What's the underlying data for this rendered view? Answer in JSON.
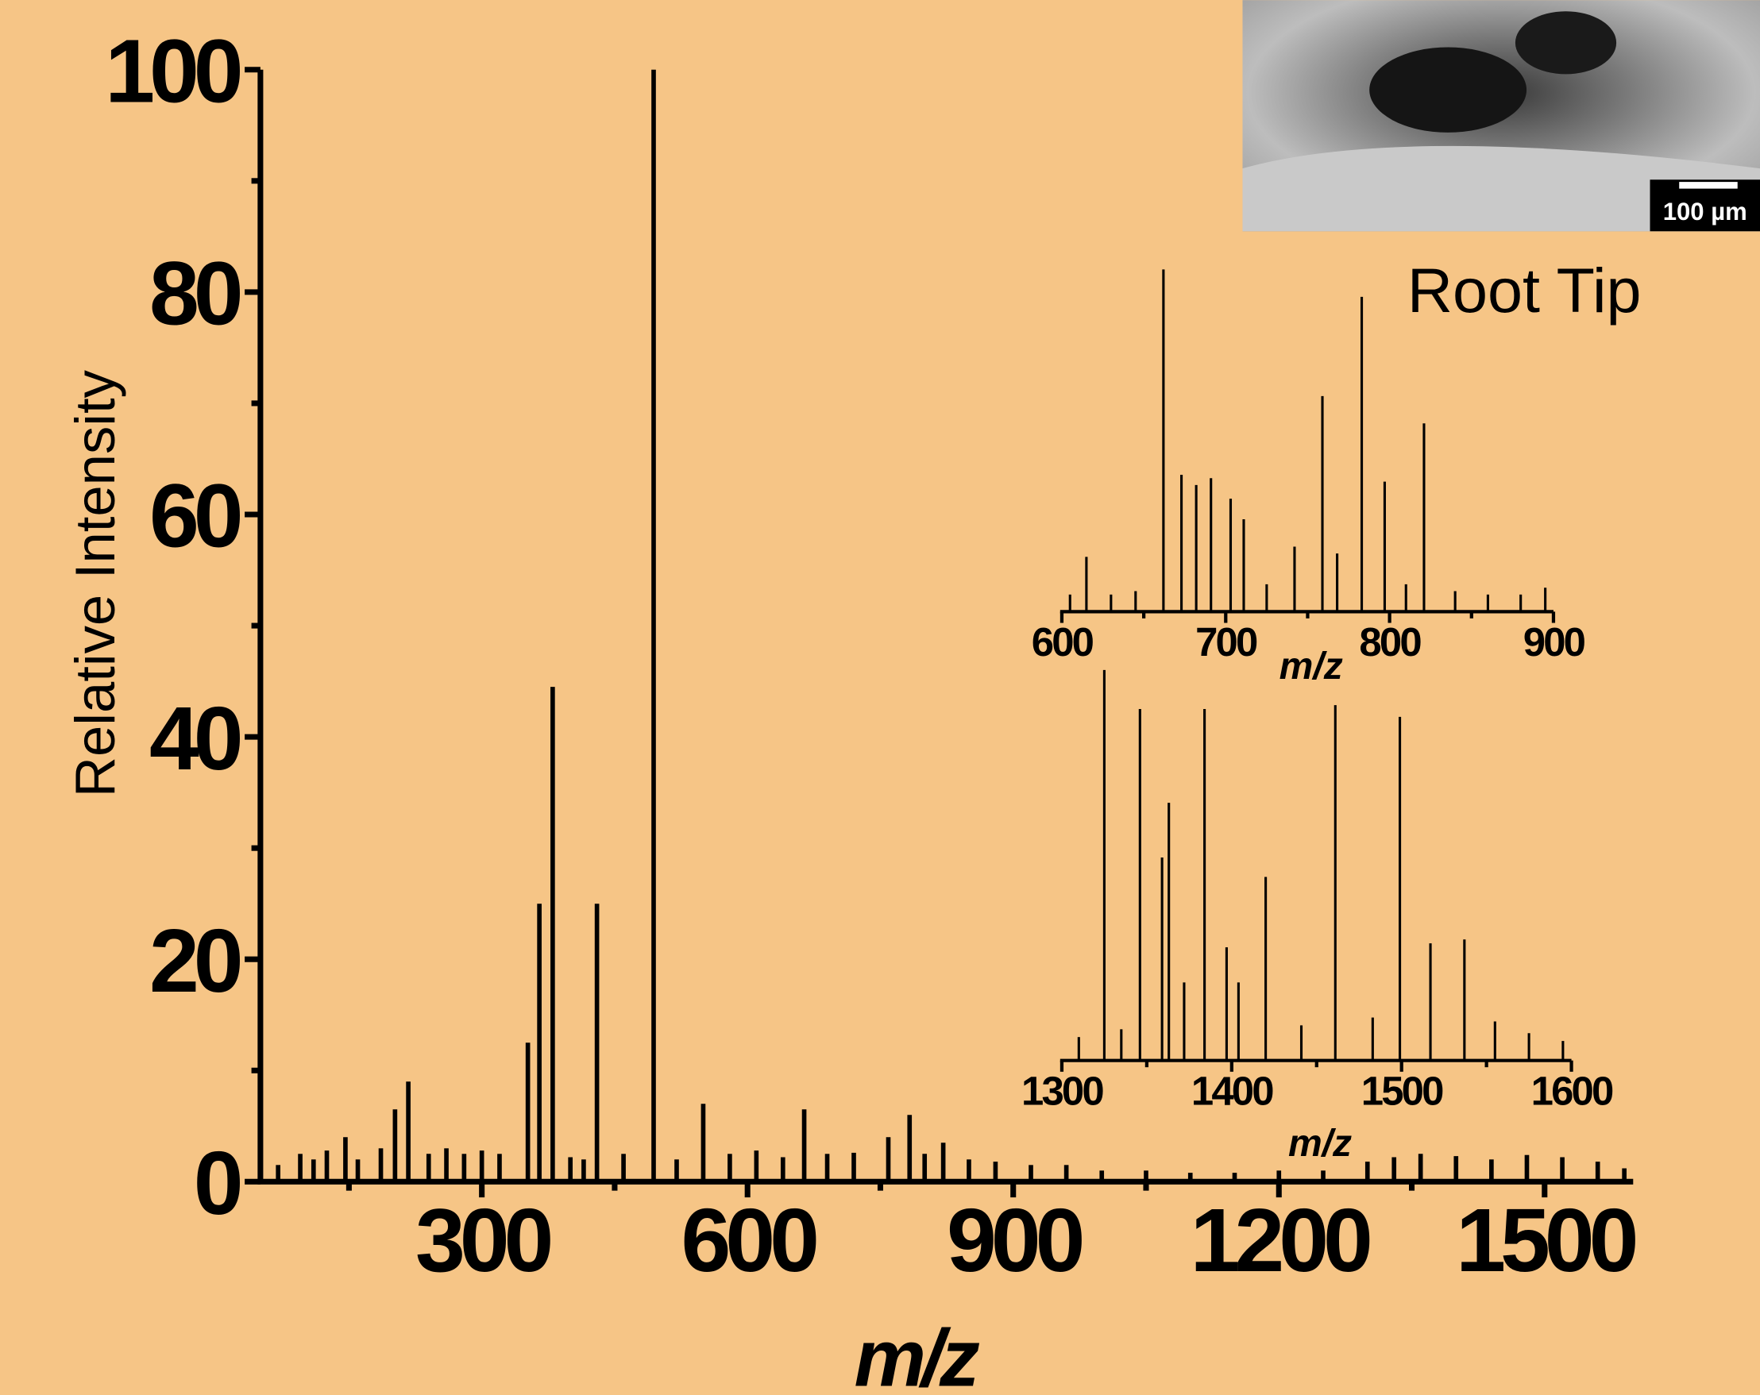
{
  "chart_data": [
    {
      "type": "stick",
      "ylabel": "Relative Intensity",
      "xlabel": "m/z",
      "xlim": [
        50,
        1600
      ],
      "xticks": [
        300,
        600,
        900,
        1200,
        1500
      ],
      "xminorticks": [
        150,
        450,
        750,
        1050,
        1350
      ],
      "ylim": [
        0,
        100
      ],
      "yticks": [
        0,
        20,
        40,
        60,
        80,
        100
      ],
      "yminorticks": [
        10,
        30,
        50,
        70,
        90
      ],
      "color": "#000000",
      "annotations": [
        "Root Tip",
        "100 µm"
      ],
      "x": [
        70,
        95,
        110,
        125,
        146,
        160,
        186,
        202,
        217,
        240,
        260,
        280,
        300,
        320,
        352,
        365,
        380,
        400,
        415,
        430,
        460,
        494,
        520,
        550,
        580,
        610,
        640,
        664,
        690,
        720,
        759,
        783,
        800,
        821,
        850,
        880,
        920,
        960,
        1000,
        1050,
        1100,
        1150,
        1200,
        1250,
        1300,
        1330,
        1360,
        1400,
        1440,
        1480,
        1520,
        1560,
        1590
      ],
      "values": [
        1.5,
        2.5,
        2,
        2.8,
        4,
        2,
        3,
        6.5,
        9,
        2.5,
        3,
        2.5,
        2.8,
        2.5,
        12.5,
        25,
        44.5,
        2.2,
        2,
        25,
        2.5,
        100,
        2,
        7,
        2.5,
        2.8,
        2.2,
        6.5,
        2.5,
        2.6,
        4,
        6,
        2.5,
        3.5,
        2,
        1.8,
        1.5,
        1.5,
        1,
        1,
        0.8,
        0.8,
        1,
        1,
        1.8,
        2.2,
        2.5,
        2.3,
        2,
        2.4,
        2.2,
        1.8,
        1.2
      ]
    },
    {
      "type": "stick",
      "xlabel": "m/z",
      "xlim": [
        600,
        900
      ],
      "xticks": [
        600,
        700,
        800,
        900
      ],
      "xminorticks": [
        650,
        750,
        850
      ],
      "ylim": [
        0,
        100
      ],
      "color": "#000000",
      "x": [
        605,
        615,
        630,
        645,
        662,
        673,
        682,
        691,
        703,
        711,
        725,
        742,
        759,
        768,
        783,
        797,
        810,
        821,
        840,
        860,
        880,
        895
      ],
      "values": [
        5,
        16,
        5,
        6,
        100,
        40,
        37,
        39,
        33,
        27,
        8,
        19,
        63,
        17,
        92,
        38,
        8,
        55,
        6,
        5,
        5,
        7
      ]
    },
    {
      "type": "stick",
      "xlabel": "m/z",
      "xlim": [
        1300,
        1600
      ],
      "xticks": [
        1300,
        1400,
        1500,
        1600
      ],
      "xminorticks": [
        1350,
        1450,
        1550
      ],
      "ylim": [
        0,
        100
      ],
      "color": "#000000",
      "x": [
        1310,
        1325,
        1335,
        1346,
        1359,
        1363,
        1372,
        1384,
        1397,
        1404,
        1420,
        1441,
        1461,
        1483,
        1499,
        1517,
        1537,
        1555,
        1575,
        1595
      ],
      "values": [
        6,
        100,
        8,
        90,
        52,
        66,
        20,
        90,
        29,
        20,
        47,
        9,
        91,
        11,
        88,
        30,
        31,
        10,
        7,
        5
      ]
    }
  ]
}
